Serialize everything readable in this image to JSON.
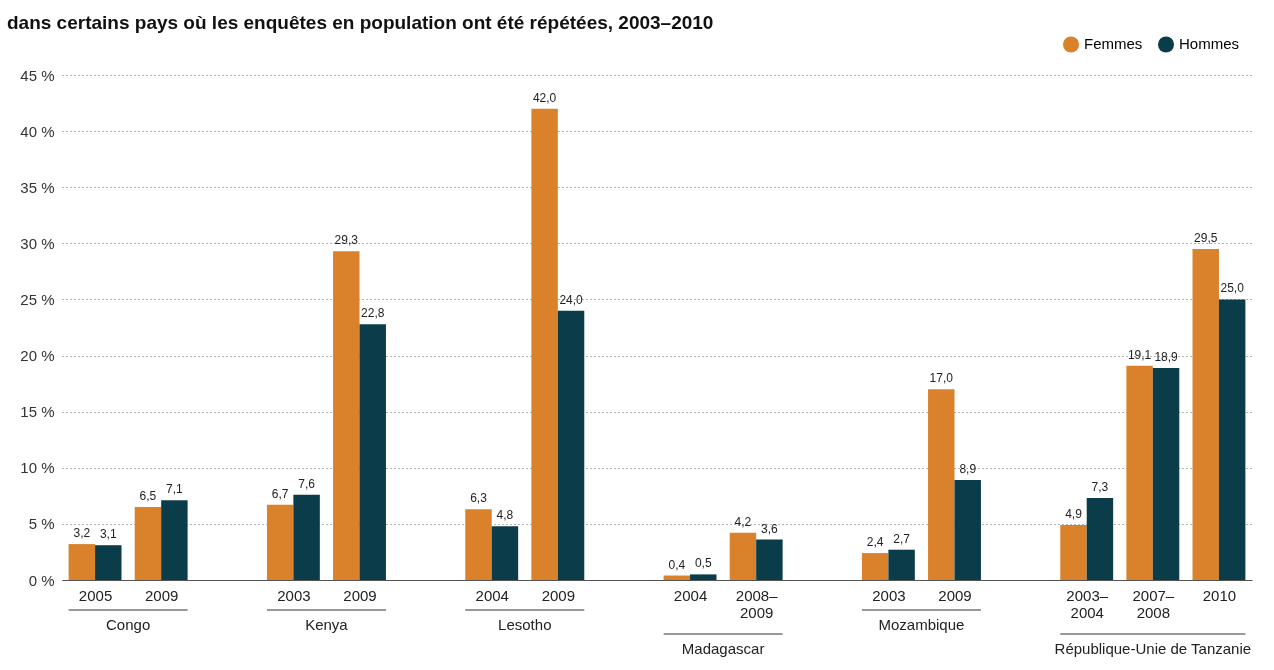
{
  "chart_data": {
    "type": "bar",
    "title": "dans certains pays où les enquêtes en population ont été répétées, 2003–2010",
    "categories": [
      "2005",
      "2009",
      null,
      "2003",
      "2009",
      null,
      "2004",
      "2009",
      null,
      "2004",
      "2008–2009",
      null,
      "2003",
      "2009",
      null,
      "2003–2004",
      "2007–2008",
      "2010"
    ],
    "series": [
      {
        "name": "Femmes",
        "color": "#d9822b",
        "values": [
          3.2,
          6.5,
          null,
          6.7,
          29.3,
          null,
          6.3,
          42.0,
          null,
          0.4,
          4.2,
          null,
          2.4,
          17.0,
          null,
          4.9,
          19.1,
          29.5
        ],
        "value_labels": [
          "3,2",
          "6,5",
          null,
          "6,7",
          "29,3",
          null,
          "6,3",
          "42,0",
          null,
          "0,4",
          "4,2",
          null,
          "2,4",
          "17,0",
          null,
          "4,9",
          "19,1",
          "29,5"
        ]
      },
      {
        "name": "Hommes",
        "color": "#0b3c49",
        "values": [
          3.1,
          7.1,
          null,
          7.6,
          22.8,
          null,
          4.8,
          24.0,
          null,
          0.5,
          3.6,
          null,
          2.7,
          8.9,
          null,
          7.3,
          18.9,
          25.0
        ],
        "value_labels": [
          "3,1",
          "7,1",
          null,
          "7,6",
          "22,8",
          null,
          "4,8",
          "24,0",
          null,
          "0,5",
          "3,6",
          null,
          "2,7",
          "8,9",
          null,
          "7,3",
          "18,9",
          "25,0"
        ]
      }
    ],
    "annotations": [
      "Congo",
      "Kenya",
      "Lesotho",
      "Madagascar",
      "Mozambique",
      "République-Unie de Tanzanie"
    ],
    "ylim": [
      0,
      45
    ],
    "yticks": [
      {
        "value": 0,
        "label": "0 %"
      },
      {
        "value": 5,
        "label": "5 %"
      },
      {
        "value": 10,
        "label": "10 %"
      },
      {
        "value": 15,
        "label": "15 %"
      },
      {
        "value": 20,
        "label": "20 %"
      },
      {
        "value": 25,
        "label": "25 %"
      },
      {
        "value": 30,
        "label": "30 %"
      },
      {
        "value": 35,
        "label": "35 %"
      },
      {
        "value": 40,
        "label": "40 %"
      },
      {
        "value": 45,
        "label": "45 %"
      }
    ],
    "grid": "y",
    "legend": "top right"
  }
}
